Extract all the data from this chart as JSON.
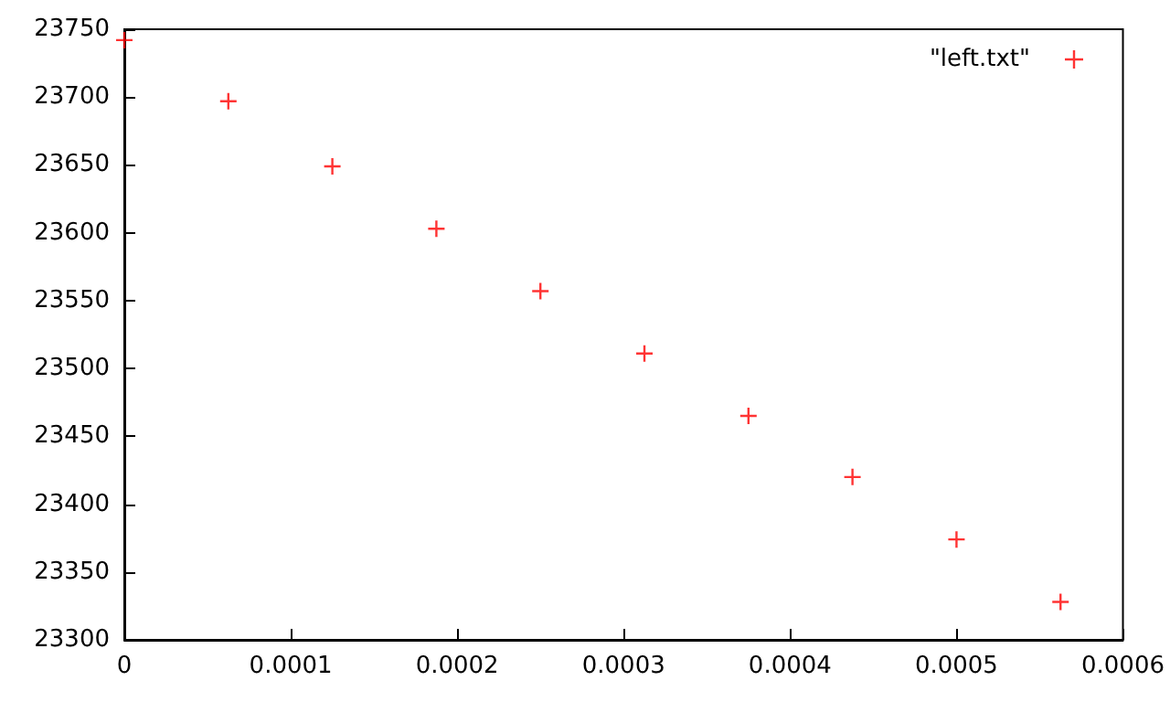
{
  "chart_data": {
    "type": "scatter",
    "x": [
      0,
      6.25e-05,
      0.000125,
      0.0001875,
      0.00025,
      0.0003125,
      0.000375,
      0.0004375,
      0.0005,
      0.0005625
    ],
    "series": [
      {
        "name": "\"left.txt\"",
        "color": "#ff0000",
        "values": [
          23742,
          23697,
          23649,
          23603,
          23557,
          23511,
          23465,
          23420,
          23374,
          23328
        ]
      }
    ],
    "xlim": [
      0,
      0.0006
    ],
    "xticks": [
      0,
      0.0001,
      0.0002,
      0.0003,
      0.0004,
      0.0005,
      0.0006
    ],
    "ylim": [
      23300,
      23750
    ],
    "yticks": [
      23300,
      23350,
      23400,
      23450,
      23500,
      23550,
      23600,
      23650,
      23700,
      23750
    ],
    "grid": false,
    "legend": "top right",
    "marker": "cross"
  }
}
